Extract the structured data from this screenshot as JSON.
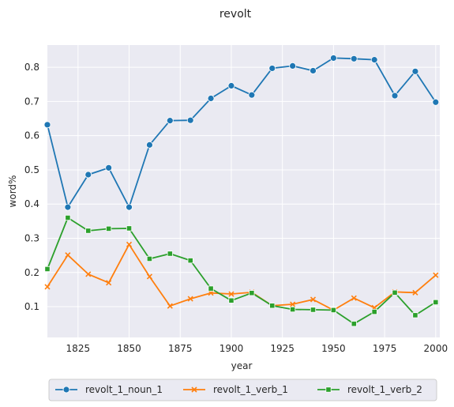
{
  "chart_data": {
    "type": "line",
    "title": "revolt",
    "xlabel": "year",
    "ylabel": "word%",
    "xlim": [
      1810,
      2002
    ],
    "ylim": [
      0.01,
      0.865
    ],
    "xticks": [
      1825,
      1850,
      1875,
      1900,
      1925,
      1950,
      1975,
      2000
    ],
    "yticks": [
      0.1,
      0.2,
      0.3,
      0.4,
      0.5,
      0.6,
      0.7,
      0.8
    ],
    "grid": true,
    "legend_position": "bottom-center",
    "x": [
      1810,
      1820,
      1830,
      1840,
      1850,
      1860,
      1870,
      1880,
      1890,
      1900,
      1910,
      1920,
      1930,
      1940,
      1950,
      1960,
      1970,
      1980,
      1990,
      2000
    ],
    "series": [
      {
        "name": "revolt_1_noun_1",
        "color": "#1f77b4",
        "marker": "circle",
        "values": [
          0.632,
          0.391,
          0.486,
          0.506,
          0.391,
          0.573,
          0.644,
          0.645,
          0.709,
          0.746,
          0.719,
          0.797,
          0.804,
          0.79,
          0.827,
          0.825,
          0.822,
          0.717,
          0.788,
          0.698
        ]
      },
      {
        "name": "revolt_1_verb_1",
        "color": "#ff7f0e",
        "marker": "x",
        "values": [
          0.158,
          0.251,
          0.195,
          0.17,
          0.282,
          0.188,
          0.102,
          0.123,
          0.14,
          0.137,
          0.142,
          0.103,
          0.107,
          0.121,
          0.09,
          0.125,
          0.097,
          0.143,
          0.141,
          0.192
        ]
      },
      {
        "name": "revolt_1_verb_2",
        "color": "#2ca02c",
        "marker": "square",
        "values": [
          0.21,
          0.36,
          0.322,
          0.328,
          0.329,
          0.24,
          0.255,
          0.235,
          0.153,
          0.118,
          0.14,
          0.103,
          0.092,
          0.091,
          0.09,
          0.05,
          0.085,
          0.141,
          0.075,
          0.113
        ]
      }
    ]
  }
}
